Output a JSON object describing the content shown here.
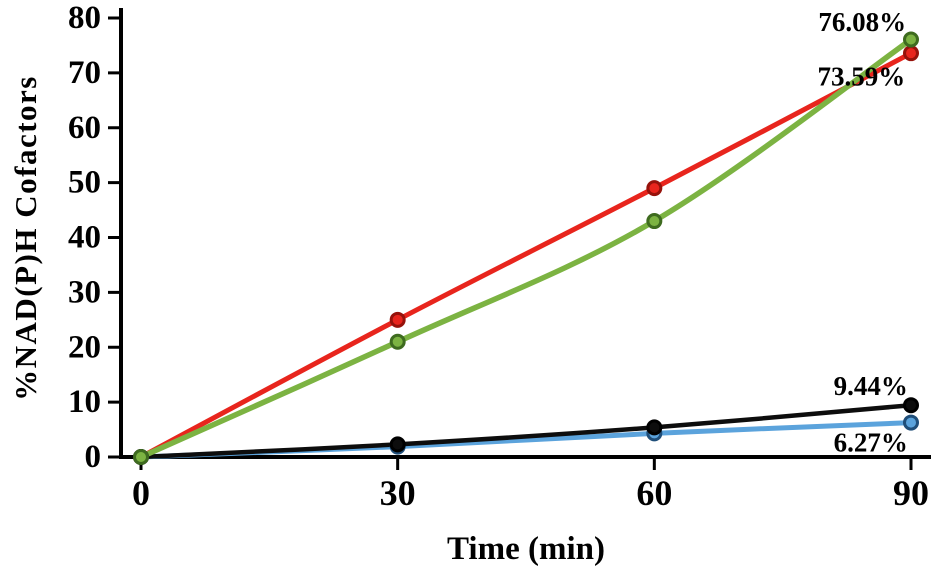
{
  "chart_data": {
    "type": "line",
    "title": "",
    "xlabel": "Time (min)",
    "ylabel": "%NAD(P)H Cofactors",
    "x": [
      0,
      30,
      60,
      90
    ],
    "xticks": [
      0,
      30,
      60,
      90
    ],
    "yticks": [
      0,
      10,
      20,
      30,
      40,
      50,
      60,
      70,
      80
    ],
    "xlim": [
      0,
      90
    ],
    "ylim": [
      0,
      80
    ],
    "grid": false,
    "legend_position": "none",
    "background": "#ffffff",
    "axis_color": "#000000",
    "series": [
      {
        "id": "red",
        "color": "#e8251d",
        "marker_stroke": "#96120b",
        "width": 5,
        "values": [
          0,
          25,
          49,
          73.59
        ],
        "end_label": "73.59%"
      },
      {
        "id": "blue",
        "color": "#5ba3dc",
        "marker_stroke": "#1f4e79",
        "width": 5,
        "values": [
          0,
          1.9,
          4.3,
          6.27
        ],
        "end_label": "6.27%"
      },
      {
        "id": "black",
        "color": "#0d0d0d",
        "marker_stroke": "#000000",
        "width": 4.5,
        "values": [
          0,
          2.3,
          5.4,
          9.44
        ],
        "end_label": "9.44%"
      },
      {
        "id": "green",
        "color": "#7cb342",
        "marker_stroke": "#3e6b1f",
        "width": 5.5,
        "values": [
          0,
          21,
          43,
          76.08
        ],
        "end_label": "76.08%"
      }
    ],
    "annotations": [
      {
        "text": "76.08%",
        "x": 84.3,
        "y": 79.3
      },
      {
        "text": "73.59%",
        "x": 84.2,
        "y": 69.3
      },
      {
        "text": "9.44%",
        "x": 85.3,
        "y": 12.9
      },
      {
        "text": "6.27%",
        "x": 85.3,
        "y": 2.6
      }
    ]
  }
}
